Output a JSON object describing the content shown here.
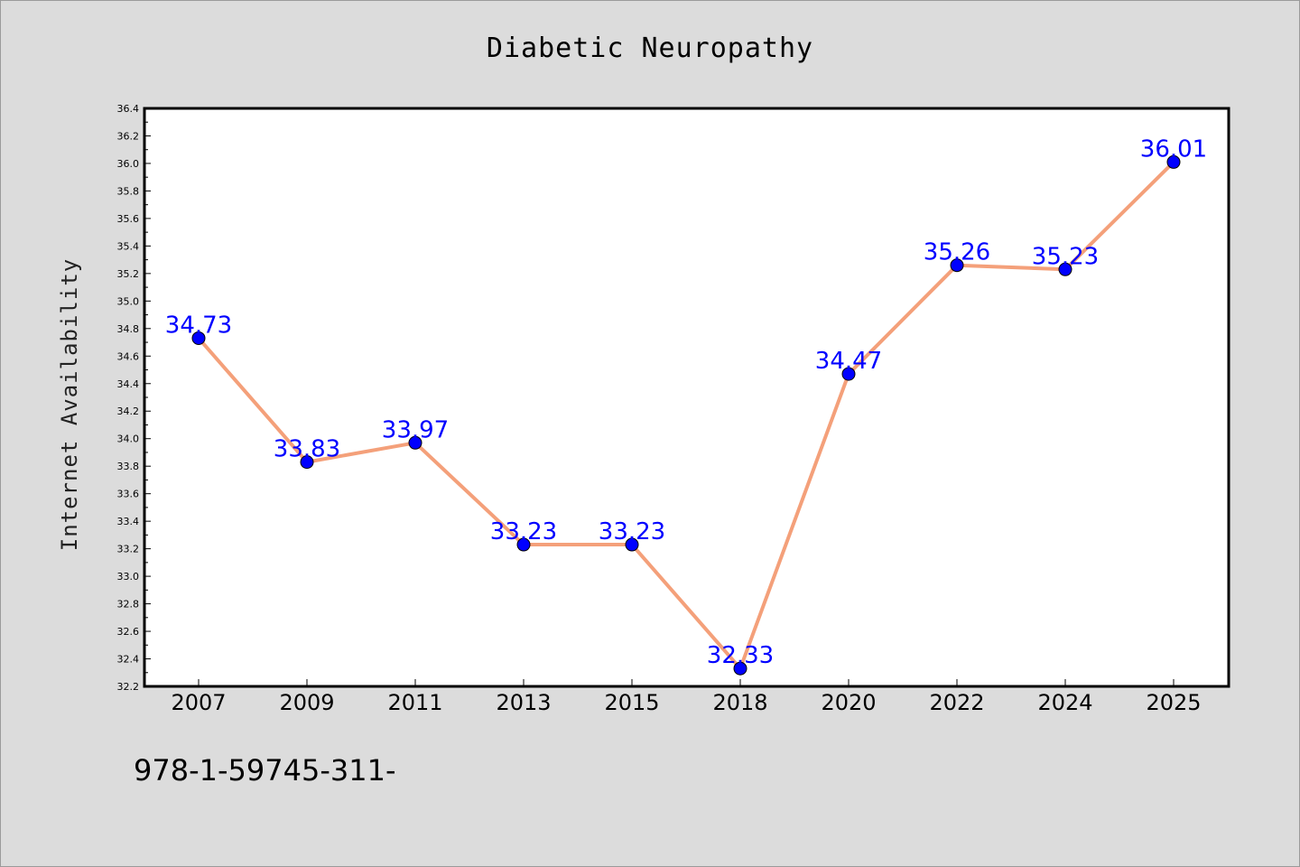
{
  "chart_data": {
    "type": "line",
    "title": "Diabetic Neuropathy",
    "xlabel": "",
    "ylabel": "Internet Availability",
    "categories": [
      "2007",
      "2009",
      "2011",
      "2013",
      "2015",
      "2018",
      "2020",
      "2022",
      "2024",
      "2025"
    ],
    "series": [
      {
        "values": [
          34.73,
          33.83,
          33.97,
          33.23,
          33.23,
          32.33,
          34.47,
          35.26,
          35.23,
          36.01
        ],
        "data_labels": [
          "34.73",
          "33.83",
          "33.97",
          "33.23",
          "33.23",
          "32.33",
          "34.47",
          "35.26",
          "35.23",
          "36.01"
        ]
      }
    ],
    "ylim": [
      32.2,
      36.4
    ],
    "yticks": [
      "32.2",
      "32.4",
      "32.6",
      "32.8",
      "33.0",
      "33.2",
      "33.4",
      "33.6",
      "33.8",
      "34.0",
      "34.2",
      "34.4",
      "34.6",
      "34.8",
      "35.0",
      "35.2",
      "35.4",
      "35.6",
      "35.8",
      "36.0",
      "36.2",
      "36.4"
    ],
    "grid": false,
    "legend": "none",
    "colors": {
      "line": "#f4a07a",
      "marker": "#0000ff",
      "label": "#0000ff",
      "plot_background": "#ffffff",
      "page_background": "#dcdcdc"
    }
  },
  "footer": {
    "text": "978-1-59745-311-"
  }
}
